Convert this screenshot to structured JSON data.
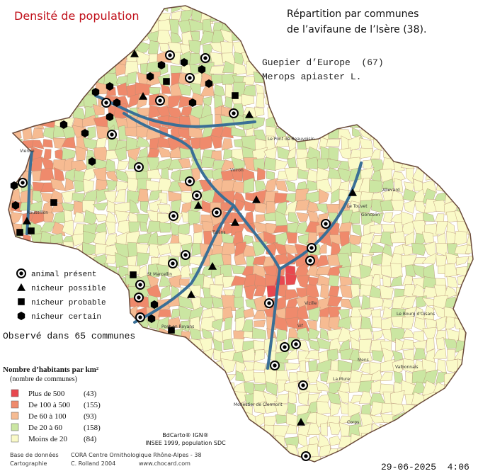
{
  "title": "Densité de population",
  "heading": [
    "Répartition par communes",
    "de l’avifaune de l’Isère (38)."
  ],
  "species": {
    "common": "Guepier d’Europe  (67)",
    "latin": "Merops apiaster L."
  },
  "symbol_legend": [
    "animal présent",
    "nicheur possible",
    "nicheur probable",
    "nicheur certain"
  ],
  "observed": "Observé dans 65 communes",
  "density_legend": {
    "title": "Nombre d’habitants par km²",
    "subtitle": "(nombre de communes)",
    "classes": [
      {
        "label": "Plus de 500",
        "count": "(43)",
        "color": "#e8484f"
      },
      {
        "label": "De 100 à 500",
        "count": "(155)",
        "color": "#ef8a6c"
      },
      {
        "label": "De 60 à 100",
        "count": "(93)",
        "color": "#f6bb92"
      },
      {
        "label": "De 20 à 60",
        "count": "(158)",
        "color": "#cbe6a2"
      },
      {
        "label": "Moins de 20",
        "count": "(84)",
        "color": "#fafac8"
      }
    ]
  },
  "sources": [
    "BdCarto® IGN®",
    "INSEE 1999, population SDC"
  ],
  "credits": [
    {
      "role": "Base de données",
      "value": "CORA Centre Ornithologique Rhône-Alpes - 38"
    },
    {
      "role": "Cartographie",
      "value": "C. Rolland 2004"
    }
  ],
  "website": "www.chocard.com",
  "timestamp": "29-06-2025  4:06",
  "places": [
    "Vienne",
    "Roussillon",
    "Le Pont de Beauvoisin",
    "Allevard",
    "Goncelin",
    "Le Touvet",
    "St Marcellin",
    "Pont en Royans",
    "Vizille",
    "Monestier de Clermont",
    "Mens",
    "Valbonnais",
    "Voiron",
    "Tullins",
    "Vif",
    "Corps",
    "La Mure",
    "Le Bourg d'Oisans"
  ]
}
